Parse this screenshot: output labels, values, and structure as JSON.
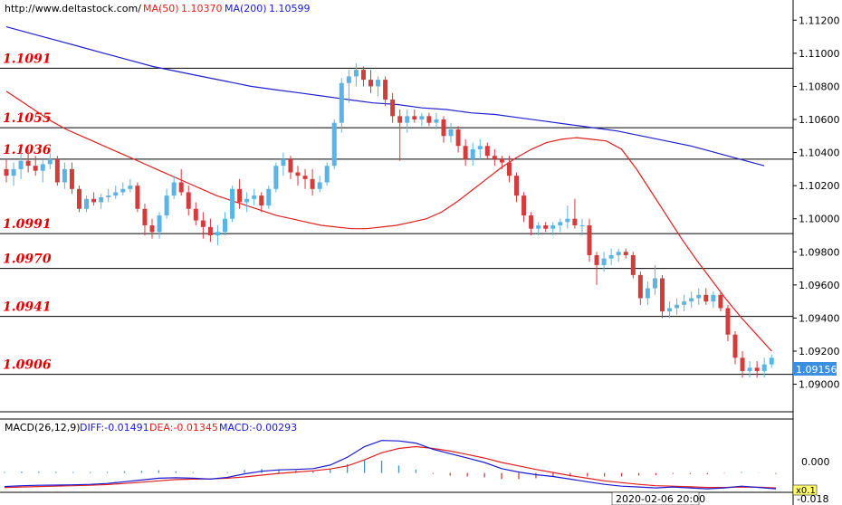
{
  "header": {
    "url": "http://www.deltastock.com/",
    "ma50_label": "MA(50)",
    "ma50_value": "1.10370",
    "ma200_label": "MA(200)",
    "ma200_value": "1.10599"
  },
  "colors": {
    "up": "#5ab4e6",
    "down": "#d23c3c",
    "ma50": "#e02020",
    "ma200": "#2020d0",
    "level_text": "#e00000",
    "diff": "#1a1ad0",
    "dea": "#e02020",
    "hist": "#3a8fc8"
  },
  "chart_data": [
    {
      "type": "candlestick",
      "instrument_hint": "EUR/USD",
      "y_axis": {
        "side": "right",
        "ylim": [
          1.0885,
          1.113
        ],
        "ticks": [
          "1.11200",
          "1.11000",
          "1.10800",
          "1.10600",
          "1.10400",
          "1.10200",
          "1.10000",
          "1.09800",
          "1.09600",
          "1.09400",
          "1.09200",
          "1.09000"
        ]
      },
      "last_price": "1.09156",
      "levels": [
        {
          "label": "1.1091",
          "value": 1.1091
        },
        {
          "label": "1.1055",
          "value": 1.1055
        },
        {
          "label": "1.1036",
          "value": 1.1036
        },
        {
          "label": "1.0991",
          "value": 1.0991
        },
        {
          "label": "1.0970",
          "value": 1.097
        },
        {
          "label": "1.0941",
          "value": 1.0941
        },
        {
          "label": "1.0906",
          "value": 1.0906
        }
      ],
      "ohlc": [
        [
          1.103,
          1.1036,
          1.1022,
          1.1026
        ],
        [
          1.1026,
          1.1034,
          1.102,
          1.103
        ],
        [
          1.103,
          1.104,
          1.1024,
          1.1035
        ],
        [
          1.1035,
          1.1042,
          1.1028,
          1.1032
        ],
        [
          1.1032,
          1.1038,
          1.1026,
          1.1029
        ],
        [
          1.1029,
          1.1036,
          1.1022,
          1.1033
        ],
        [
          1.1033,
          1.104,
          1.103,
          1.1036
        ],
        [
          1.1036,
          1.1038,
          1.102,
          1.1022
        ],
        [
          1.1022,
          1.1034,
          1.1018,
          1.103
        ],
        [
          1.103,
          1.1034,
          1.1015,
          1.1018
        ],
        [
          1.1018,
          1.102,
          1.1004,
          1.1006
        ],
        [
          1.1006,
          1.1014,
          1.1004,
          1.1012
        ],
        [
          1.1012,
          1.1016,
          1.1008,
          1.101
        ],
        [
          1.101,
          1.1015,
          1.1006,
          1.1013
        ],
        [
          1.1013,
          1.1018,
          1.101,
          1.1014
        ],
        [
          1.1014,
          1.102,
          1.1012,
          1.1016
        ],
        [
          1.1016,
          1.1022,
          1.1014,
          1.1018
        ],
        [
          1.1018,
          1.1024,
          1.1016,
          1.102
        ],
        [
          1.102,
          1.1022,
          1.1004,
          1.1006
        ],
        [
          1.1006,
          1.1009,
          1.099,
          1.0996
        ],
        [
          1.0996,
          1.1,
          1.0988,
          1.0992
        ],
        [
          1.0992,
          1.1004,
          1.0988,
          1.1002
        ],
        [
          1.1002,
          1.1018,
          1.1,
          1.1014
        ],
        [
          1.1014,
          1.1026,
          1.1012,
          1.1022
        ],
        [
          1.1022,
          1.103,
          1.1014,
          1.1016
        ],
        [
          1.1016,
          1.102,
          1.1002,
          1.1006
        ],
        [
          1.1006,
          1.101,
          1.0996,
          1.0999
        ],
        [
          1.0999,
          1.1004,
          1.0988,
          1.0995
        ],
        [
          1.0995,
          1.1,
          1.0986,
          1.099
        ],
        [
          1.099,
          1.0996,
          1.0984,
          1.0992
        ],
        [
          1.0992,
          1.1004,
          1.099,
          1.1
        ],
        [
          1.1,
          1.102,
          1.0998,
          1.1018
        ],
        [
          1.1018,
          1.1024,
          1.1006,
          1.101
        ],
        [
          1.101,
          1.1016,
          1.1004,
          1.1012
        ],
        [
          1.1012,
          1.1018,
          1.1008,
          1.1014
        ],
        [
          1.1014,
          1.1016,
          1.1004,
          1.1008
        ],
        [
          1.1008,
          1.102,
          1.1006,
          1.1018
        ],
        [
          1.1018,
          1.1034,
          1.1016,
          1.1032
        ],
        [
          1.1032,
          1.104,
          1.1026,
          1.1036
        ],
        [
          1.1036,
          1.1038,
          1.1024,
          1.1028
        ],
        [
          1.1028,
          1.1032,
          1.102,
          1.1026
        ],
        [
          1.1026,
          1.103,
          1.1018,
          1.1024
        ],
        [
          1.1024,
          1.103,
          1.1014,
          1.1018
        ],
        [
          1.1018,
          1.1026,
          1.1016,
          1.1022
        ],
        [
          1.1022,
          1.1034,
          1.102,
          1.1032
        ],
        [
          1.1032,
          1.106,
          1.103,
          1.1058
        ],
        [
          1.1058,
          1.1085,
          1.1052,
          1.1082
        ],
        [
          1.1082,
          1.109,
          1.107,
          1.1086
        ],
        [
          1.1086,
          1.1094,
          1.108,
          1.109
        ],
        [
          1.109,
          1.1092,
          1.108,
          1.1084
        ],
        [
          1.1084,
          1.109,
          1.1076,
          1.108
        ],
        [
          1.108,
          1.1086,
          1.1074,
          1.1084
        ],
        [
          1.1084,
          1.1086,
          1.1068,
          1.1072
        ],
        [
          1.1072,
          1.1076,
          1.1058,
          1.1062
        ],
        [
          1.1062,
          1.1066,
          1.1035,
          1.1058
        ],
        [
          1.1058,
          1.1066,
          1.1052,
          1.1062
        ],
        [
          1.1062,
          1.1066,
          1.1058,
          1.106
        ],
        [
          1.106,
          1.1064,
          1.1056,
          1.1062
        ],
        [
          1.1062,
          1.1064,
          1.1056,
          1.1058
        ],
        [
          1.1058,
          1.1064,
          1.1054,
          1.106
        ],
        [
          1.106,
          1.1062,
          1.1046,
          1.105
        ],
        [
          1.105,
          1.1058,
          1.1046,
          1.1054
        ],
        [
          1.1054,
          1.1056,
          1.104,
          1.1044
        ],
        [
          1.1044,
          1.1048,
          1.1032,
          1.1036
        ],
        [
          1.1036,
          1.1046,
          1.1032,
          1.1042
        ],
        [
          1.1042,
          1.1048,
          1.1036,
          1.1044
        ],
        [
          1.1044,
          1.1046,
          1.1036,
          1.1038
        ],
        [
          1.1038,
          1.1042,
          1.1032,
          1.1036
        ],
        [
          1.1036,
          1.1038,
          1.103,
          1.1034
        ],
        [
          1.1034,
          1.1038,
          1.1022,
          1.1026
        ],
        [
          1.1026,
          1.1028,
          1.101,
          1.1014
        ],
        [
          1.1014,
          1.1016,
          1.0998,
          1.1002
        ],
        [
          1.1002,
          1.1004,
          1.099,
          1.0994
        ],
        [
          1.0994,
          1.0998,
          1.099,
          1.0996
        ],
        [
          1.0996,
          1.0998,
          1.0992,
          1.0994
        ],
        [
          1.0994,
          1.0998,
          1.099,
          1.0996
        ],
        [
          1.0996,
          1.1,
          1.0992,
          1.0998
        ],
        [
          1.0998,
          1.1008,
          1.0994,
          1.1
        ],
        [
          1.1,
          1.1012,
          1.0994,
          1.0996
        ],
        [
          1.0996,
          1.1,
          1.099,
          1.0996
        ],
        [
          1.0996,
          1.1,
          1.0974,
          1.0978
        ],
        [
          1.0978,
          1.098,
          1.096,
          1.0972
        ],
        [
          1.0972,
          1.098,
          1.0968,
          1.0976
        ],
        [
          1.0976,
          1.0982,
          1.0972,
          1.0978
        ],
        [
          1.0978,
          1.0982,
          1.0974,
          1.098
        ],
        [
          1.098,
          1.0982,
          1.0976,
          1.0978
        ],
        [
          1.0978,
          1.098,
          1.0964,
          1.0966
        ],
        [
          1.0966,
          1.0968,
          1.0948,
          1.0952
        ],
        [
          1.0952,
          1.0962,
          1.0948,
          1.0958
        ],
        [
          1.0958,
          1.0972,
          1.0954,
          1.0964
        ],
        [
          1.0964,
          1.0966,
          1.094,
          1.0944
        ],
        [
          1.0944,
          1.095,
          1.094,
          1.0946
        ],
        [
          1.0946,
          1.0952,
          1.0942,
          1.0948
        ],
        [
          1.0948,
          1.0954,
          1.0944,
          1.095
        ],
        [
          1.095,
          1.0956,
          1.0946,
          1.0952
        ],
        [
          1.0952,
          1.0958,
          1.0948,
          1.0954
        ],
        [
          1.0954,
          1.0958,
          1.0948,
          1.095
        ],
        [
          1.095,
          1.0956,
          1.0946,
          1.0954
        ],
        [
          1.0954,
          1.0956,
          1.0944,
          1.0946
        ],
        [
          1.0946,
          1.0948,
          1.0926,
          1.093
        ],
        [
          1.093,
          1.0932,
          1.0912,
          1.0916
        ],
        [
          1.0916,
          1.092,
          1.0904,
          1.0908
        ],
        [
          1.0908,
          1.0914,
          1.0904,
          1.091
        ],
        [
          1.091,
          1.0914,
          1.0904,
          1.0908
        ],
        [
          1.0908,
          1.0916,
          1.0904,
          1.0912
        ],
        [
          1.0912,
          1.0918,
          1.091,
          1.0916
        ]
      ],
      "ma50": [
        1.1077,
        1.1071,
        1.1065,
        1.1059,
        1.1054,
        1.105,
        1.1046,
        1.1042,
        1.1038,
        1.1034,
        1.103,
        1.1026,
        1.1022,
        1.1018,
        1.1014,
        1.1011,
        1.1008,
        1.1005,
        1.1002,
        1.1,
        1.0998,
        1.0996,
        1.0995,
        1.0994,
        1.0994,
        1.0995,
        1.0996,
        1.0998,
        1.1,
        1.1004,
        1.101,
        1.1017,
        1.1024,
        1.1031,
        1.1037,
        1.1042,
        1.1046,
        1.1048,
        1.1049,
        1.1048,
        1.1047,
        1.1042,
        1.103,
        1.1016,
        1.1002,
        1.0988,
        1.0975,
        1.0963,
        1.0951,
        1.094,
        1.093,
        1.092
      ],
      "ma200": [
        1.1116,
        1.1112,
        1.1108,
        1.1104,
        1.11,
        1.1096,
        1.1092,
        1.1089,
        1.1086,
        1.1083,
        1.108,
        1.1078,
        1.1076,
        1.1074,
        1.1072,
        1.107,
        1.1069,
        1.1067,
        1.1066,
        1.1064,
        1.1063,
        1.1061,
        1.1059,
        1.1057,
        1.1055,
        1.1053,
        1.105,
        1.1047,
        1.1044,
        1.104,
        1.1036,
        1.1032
      ],
      "ma200_x_index_range": [
        0,
        104
      ],
      "ma50_x_index_range": [
        0,
        105
      ]
    },
    {
      "type": "line",
      "title": "MACD(26,12,9)",
      "legend": [
        {
          "label": "DIFF:-0.01491",
          "color": "#1a1ad0"
        },
        {
          "label": "DEA:-0.01345",
          "color": "#e02020"
        },
        {
          "label": "MACD:-0.00293",
          "color": "#1a1ad0"
        }
      ],
      "y_ticks": [
        "0.000",
        "-0.018"
      ],
      "scale_badge": "x0.1",
      "ylim": [
        -0.02,
        0.046
      ],
      "diff": [
        -0.0155,
        -0.0145,
        -0.014,
        -0.0138,
        -0.0135,
        -0.013,
        -0.012,
        -0.01,
        -0.008,
        -0.006,
        -0.0055,
        -0.006,
        -0.007,
        -0.005,
        -0.001,
        0.002,
        0.0035,
        0.004,
        0.005,
        0.009,
        0.018,
        0.03,
        0.037,
        0.0365,
        0.034,
        0.027,
        0.022,
        0.017,
        0.012,
        0.005,
        0.001,
        -0.002,
        -0.004,
        -0.007,
        -0.01,
        -0.013,
        -0.015,
        -0.016,
        -0.017,
        -0.016,
        -0.017,
        -0.018,
        -0.017,
        -0.015,
        -0.0165,
        -0.018
      ],
      "dea": [
        -0.0165,
        -0.016,
        -0.0155,
        -0.015,
        -0.0145,
        -0.014,
        -0.0132,
        -0.012,
        -0.0105,
        -0.009,
        -0.0075,
        -0.007,
        -0.0068,
        -0.006,
        -0.0045,
        -0.0025,
        -0.0005,
        0.001,
        0.0025,
        0.0045,
        0.008,
        0.015,
        0.023,
        0.028,
        0.03,
        0.028,
        0.025,
        0.021,
        0.017,
        0.012,
        0.008,
        0.004,
        0.0005,
        -0.003,
        -0.006,
        -0.009,
        -0.011,
        -0.013,
        -0.0145,
        -0.015,
        -0.0158,
        -0.0165,
        -0.0165,
        -0.016,
        -0.0163,
        -0.017
      ],
      "histogram": [
        0.001,
        0.0015,
        0.0015,
        0.0012,
        0.001,
        0.001,
        0.0012,
        0.002,
        0.0025,
        0.003,
        0.002,
        0.001,
        -0.0002,
        0.001,
        0.0035,
        0.0045,
        0.004,
        0.003,
        0.0025,
        0.0045,
        0.01,
        0.015,
        0.014,
        0.0085,
        0.004,
        -0.001,
        -0.003,
        -0.004,
        -0.005,
        -0.007,
        -0.007,
        -0.006,
        -0.0045,
        -0.004,
        -0.004,
        -0.004,
        -0.004,
        -0.003,
        -0.0025,
        -0.001,
        -0.0012,
        -0.0015,
        -0.0005,
        0.001,
        -0.0002,
        -0.001
      ]
    }
  ],
  "footer": {
    "timestamp": "2020-02-06 20:00"
  }
}
